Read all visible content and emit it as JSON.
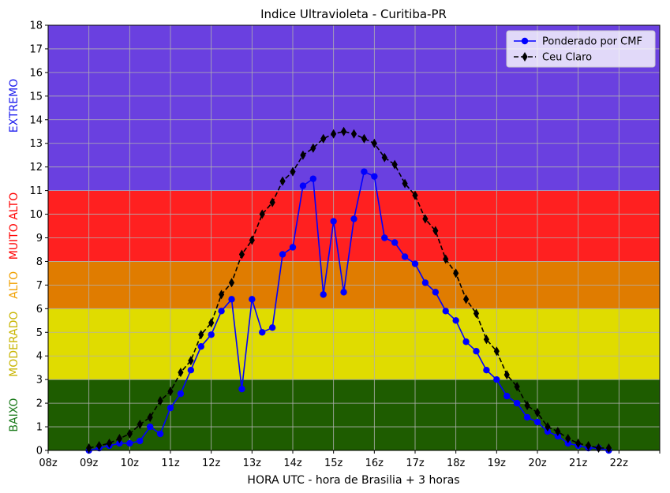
{
  "chart_data": {
    "type": "line",
    "title": "Indice Ultravioleta - Curitiba-PR",
    "xlabel": "HORA UTC - hora de Brasilia + 3 horas",
    "ylabel": "",
    "ylim": [
      0,
      18
    ],
    "yticks": [
      0,
      1,
      2,
      3,
      4,
      5,
      6,
      7,
      8,
      9,
      10,
      11,
      12,
      13,
      14,
      15,
      16,
      17,
      18
    ],
    "xlim": [
      8,
      23
    ],
    "xtick_values": [
      8,
      9,
      10,
      11,
      12,
      13,
      14,
      15,
      16,
      17,
      18,
      19,
      20,
      21,
      22,
      23
    ],
    "xtick_labels": [
      "08z",
      "09z",
      "10z",
      "11z",
      "12z",
      "13z",
      "14z",
      "15z",
      "16z",
      "17z",
      "18z",
      "19z",
      "20z",
      "21z",
      "22z",
      ""
    ],
    "grid": true,
    "legend_position": "top-right",
    "bands": [
      {
        "label": "BAIXO",
        "from": 0,
        "to": 3,
        "color": "#1e5c00",
        "label_color": "#1a7a1a"
      },
      {
        "label": "MODERADO",
        "from": 3,
        "to": 6,
        "color": "#e0dc00",
        "label_color": "#c8b400"
      },
      {
        "label": "ALTO",
        "from": 6,
        "to": 8,
        "color": "#e07c00",
        "label_color": "#f0a000"
      },
      {
        "label": "MUITO ALTO",
        "from": 8,
        "to": 11,
        "color": "#ff2020",
        "label_color": "#ff0000"
      },
      {
        "label": "EXTREMO",
        "from": 11,
        "to": 18,
        "color": "#6a40e0",
        "label_color": "#1a1aee"
      }
    ],
    "series": [
      {
        "name": "Ponderado por CMF",
        "color": "#0000ff",
        "marker": "circle",
        "dash": "solid",
        "x": [
          9.0,
          9.25,
          9.5,
          9.75,
          10.0,
          10.25,
          10.5,
          10.75,
          11.0,
          11.25,
          11.5,
          11.75,
          12.0,
          12.25,
          12.5,
          12.75,
          13.0,
          13.25,
          13.5,
          13.75,
          14.0,
          14.25,
          14.5,
          14.75,
          15.0,
          15.25,
          15.5,
          15.75,
          16.0,
          16.25,
          16.5,
          16.75,
          17.0,
          17.25,
          17.5,
          17.75,
          18.0,
          18.25,
          18.5,
          18.75,
          19.0,
          19.25,
          19.5,
          19.75,
          20.0,
          20.25,
          20.5,
          20.75,
          21.0,
          21.25,
          21.5,
          21.75
        ],
        "y": [
          0.0,
          0.1,
          0.2,
          0.3,
          0.3,
          0.4,
          1.0,
          0.7,
          1.8,
          2.4,
          3.4,
          4.4,
          4.9,
          5.9,
          6.4,
          2.6,
          6.4,
          5.0,
          5.2,
          8.3,
          8.6,
          11.2,
          11.5,
          6.6,
          9.7,
          6.7,
          9.8,
          11.8,
          11.6,
          9.0,
          8.8,
          8.2,
          7.9,
          7.1,
          6.7,
          5.9,
          5.5,
          4.6,
          4.2,
          3.4,
          3.0,
          2.3,
          2.0,
          1.4,
          1.2,
          0.8,
          0.6,
          0.3,
          0.2,
          0.1,
          0.1,
          0.0
        ]
      },
      {
        "name": "Ceu Claro",
        "color": "#000000",
        "marker": "diamond",
        "dash": "dashed",
        "x": [
          9.0,
          9.25,
          9.5,
          9.75,
          10.0,
          10.25,
          10.5,
          10.75,
          11.0,
          11.25,
          11.5,
          11.75,
          12.0,
          12.25,
          12.5,
          12.75,
          13.0,
          13.25,
          13.5,
          13.75,
          14.0,
          14.25,
          14.5,
          14.75,
          15.0,
          15.25,
          15.5,
          15.75,
          16.0,
          16.25,
          16.5,
          16.75,
          17.0,
          17.25,
          17.5,
          17.75,
          18.0,
          18.25,
          18.5,
          18.75,
          19.0,
          19.25,
          19.5,
          19.75,
          20.0,
          20.25,
          20.5,
          20.75,
          21.0,
          21.25,
          21.5,
          21.75
        ],
        "y": [
          0.1,
          0.2,
          0.3,
          0.5,
          0.7,
          1.1,
          1.4,
          2.1,
          2.5,
          3.3,
          3.8,
          4.9,
          5.4,
          6.6,
          7.1,
          8.3,
          8.9,
          10.0,
          10.5,
          11.4,
          11.8,
          12.5,
          12.8,
          13.2,
          13.4,
          13.5,
          13.4,
          13.2,
          13.0,
          12.4,
          12.1,
          11.3,
          10.8,
          9.8,
          9.3,
          8.1,
          7.5,
          6.4,
          5.8,
          4.7,
          4.2,
          3.2,
          2.7,
          1.9,
          1.6,
          1.0,
          0.8,
          0.5,
          0.3,
          0.2,
          0.1,
          0.1
        ]
      }
    ]
  }
}
